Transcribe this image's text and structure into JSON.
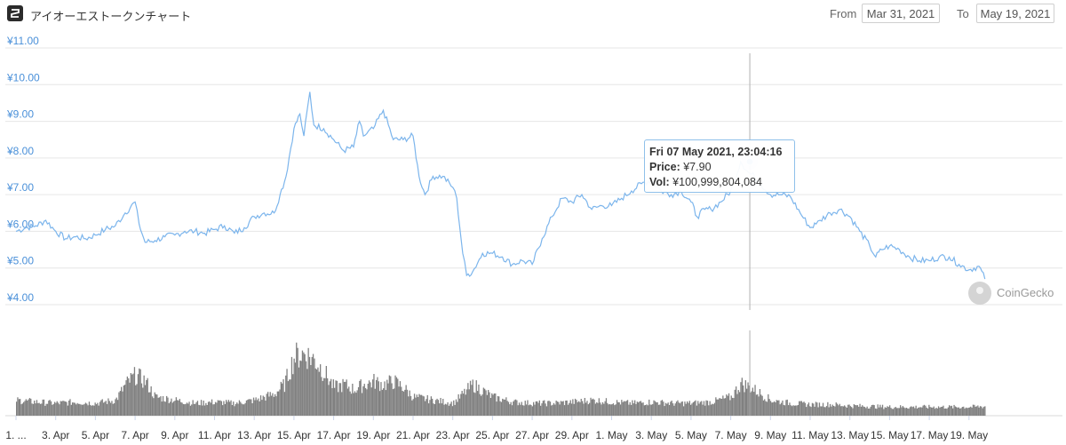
{
  "header": {
    "title": "アイオーエストークンチャート",
    "from_label": "From",
    "from_value": "Mar 31, 2021",
    "to_label": "To",
    "to_value": "May 19, 2021"
  },
  "tooltip": {
    "datetime": "Fri 07 May 2021, 23:04:16",
    "price_label": "Price:",
    "price_value": "¥7.90",
    "vol_label": "Vol:",
    "vol_value": "¥100,999,804,084"
  },
  "watermark": "CoinGecko",
  "colors": {
    "line": "#7cb5ec",
    "volume": "#808080",
    "axis_text": "#4a90d9",
    "grid": "#e6e6e6"
  },
  "chart_data": {
    "type": "line",
    "y_tick_labels": [
      "¥4.00",
      "¥5.00",
      "¥6.00",
      "¥7.00",
      "¥8.00",
      "¥9.00",
      "¥10.00",
      "¥11.00"
    ],
    "y_ticks": [
      4,
      5,
      6,
      7,
      8,
      9,
      10,
      11
    ],
    "ylim": [
      4,
      11
    ],
    "x_tick_labels": [
      "1. ...",
      "3. Apr",
      "5. Apr",
      "7. Apr",
      "9. Apr",
      "11. Apr",
      "13. Apr",
      "15. Apr",
      "17. Apr",
      "19. Apr",
      "21. Apr",
      "23. Apr",
      "25. Apr",
      "27. Apr",
      "29. Apr",
      "1. May",
      "3. May",
      "5. May",
      "7. May",
      "9. May",
      "11. May",
      "13. May",
      "15. May",
      "17. May",
      "19. May"
    ],
    "x_days": [
      0,
      2,
      4,
      6,
      8,
      10,
      12,
      14,
      16,
      18,
      20,
      22,
      24,
      26,
      28,
      30,
      32,
      34,
      36,
      38,
      40,
      42,
      44,
      46,
      48
    ],
    "x_range_days": [
      0,
      48.8
    ],
    "series": [
      {
        "x_days": [
          0,
          0.5,
          1.0,
          1.5,
          2.0,
          2.5,
          3.0,
          3.5,
          4.0,
          4.5,
          5.0,
          5.5,
          6.0,
          6.2,
          6.5,
          7.0,
          7.5,
          8.0,
          8.5,
          9.0,
          9.5,
          10.0,
          10.5,
          11.0,
          11.5,
          12.0,
          12.5,
          13.0,
          13.3,
          13.6,
          14.0,
          14.3,
          14.5,
          14.8,
          15.0,
          15.5,
          16.0,
          16.5,
          17.0,
          17.3,
          17.5,
          18.0,
          18.5,
          19.0,
          19.5,
          20.0,
          20.3,
          20.6,
          21.0,
          21.5,
          22.0,
          22.2,
          22.5,
          22.7,
          23.0,
          23.5,
          24.0,
          24.5,
          25.0,
          25.5,
          26.0,
          26.5,
          27.0,
          27.5,
          28.0,
          28.5,
          29.0,
          29.5,
          30.0,
          30.5,
          31.0,
          31.5,
          32.0,
          32.5,
          33.0,
          33.5,
          34.0,
          34.3,
          34.7,
          35.0,
          35.5,
          36.0,
          36.5,
          36.9,
          37.2,
          37.5,
          38.0,
          38.5,
          39.0,
          39.5,
          40.0,
          40.3,
          40.5,
          41.0,
          41.5,
          42.0,
          42.5,
          43.0,
          43.3,
          43.6,
          44.0,
          44.5,
          45.0,
          45.5,
          46.0,
          46.5,
          47.0,
          47.5,
          48.0,
          48.5,
          48.8
        ],
        "values": [
          6.0,
          6.1,
          6.15,
          6.3,
          6.0,
          5.8,
          5.85,
          5.8,
          5.9,
          6.05,
          6.15,
          6.5,
          6.8,
          6.2,
          5.7,
          5.75,
          5.85,
          5.9,
          6.0,
          6.0,
          5.95,
          6.05,
          6.15,
          5.95,
          6.1,
          6.4,
          6.5,
          6.5,
          7.0,
          7.5,
          8.8,
          9.2,
          8.6,
          9.8,
          8.9,
          8.8,
          8.5,
          8.2,
          8.3,
          9.0,
          8.6,
          8.8,
          9.3,
          8.5,
          8.5,
          8.6,
          7.5,
          7.0,
          7.5,
          7.5,
          7.2,
          6.9,
          5.4,
          4.8,
          4.9,
          5.4,
          5.4,
          5.3,
          5.1,
          5.2,
          5.1,
          5.8,
          6.4,
          6.9,
          6.8,
          7.0,
          6.6,
          6.7,
          6.7,
          6.9,
          7.1,
          7.3,
          7.4,
          7.1,
          7.0,
          7.1,
          6.8,
          6.4,
          6.6,
          6.6,
          6.8,
          7.1,
          7.9,
          7.6,
          7.5,
          7.3,
          7.0,
          7.0,
          6.95,
          6.5,
          6.1,
          6.2,
          6.3,
          6.5,
          6.6,
          6.4,
          6.0,
          5.6,
          5.3,
          5.5,
          5.6,
          5.5,
          5.3,
          5.2,
          5.2,
          5.3,
          5.3,
          5.1,
          4.95,
          5.05,
          4.7
        ]
      }
    ],
    "volume_x_days": [
      0,
      1,
      2,
      3,
      4,
      5,
      5.5,
      6,
      6.5,
      7,
      8,
      9,
      10,
      11,
      12,
      13,
      13.5,
      14,
      14.5,
      15,
      15.5,
      16,
      16.5,
      17,
      17.5,
      18,
      18.5,
      19,
      19.5,
      20,
      21,
      22,
      22.5,
      23,
      23.5,
      24,
      25,
      26,
      27,
      28,
      29,
      30,
      31,
      32,
      33,
      34,
      35,
      36,
      36.5,
      37,
      37.5,
      38,
      39,
      40,
      41,
      42,
      43,
      44,
      45,
      46,
      47,
      48,
      48.8
    ],
    "volume_values": [
      0.25,
      0.22,
      0.2,
      0.22,
      0.2,
      0.25,
      0.5,
      0.65,
      0.55,
      0.3,
      0.25,
      0.2,
      0.22,
      0.2,
      0.25,
      0.35,
      0.5,
      0.95,
      1.0,
      0.9,
      0.7,
      0.45,
      0.5,
      0.42,
      0.5,
      0.55,
      0.5,
      0.55,
      0.45,
      0.3,
      0.25,
      0.2,
      0.35,
      0.5,
      0.4,
      0.3,
      0.22,
      0.2,
      0.2,
      0.22,
      0.25,
      0.22,
      0.2,
      0.22,
      0.2,
      0.2,
      0.22,
      0.3,
      0.52,
      0.45,
      0.35,
      0.25,
      0.2,
      0.18,
      0.18,
      0.16,
      0.15,
      0.14,
      0.14,
      0.14,
      0.14,
      0.14,
      0.15
    ]
  }
}
